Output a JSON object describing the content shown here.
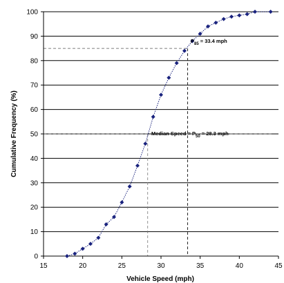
{
  "chart_data": {
    "type": "line",
    "xlabel": "Vehicle Speed (mph)",
    "ylabel": "Cumulative Frequency (%)",
    "xlim": [
      15,
      45
    ],
    "ylim": [
      0,
      100
    ],
    "x_ticks": [
      15,
      20,
      25,
      30,
      35,
      40,
      45
    ],
    "y_ticks": [
      0,
      10,
      20,
      30,
      40,
      50,
      60,
      70,
      80,
      90,
      100
    ],
    "grid": "horizontal",
    "series": [
      {
        "color": "#1a237e",
        "x": [
          18,
          19,
          20,
          21,
          22,
          23,
          24,
          25,
          26,
          27,
          28,
          29,
          30,
          31,
          32,
          33,
          34,
          35,
          36,
          37,
          38,
          39,
          40,
          41,
          42,
          44
        ],
        "y": [
          0,
          1,
          3,
          5,
          7.5,
          13,
          16,
          22,
          28.5,
          37,
          46,
          57,
          66,
          73,
          79,
          84,
          88,
          91,
          94,
          95.5,
          97,
          98,
          98.5,
          99,
          100,
          100
        ]
      }
    ],
    "annotations": {
      "p85": {
        "text_main": "P",
        "text_sub": "85",
        "text_value": " = 33.4 mph",
        "x": 33.4,
        "y": 85
      },
      "median": {
        "text_main": "Median Speed = P",
        "text_sub": "50",
        "text_value": " = 28.3 mph",
        "x": 28.3,
        "y": 50
      }
    }
  }
}
